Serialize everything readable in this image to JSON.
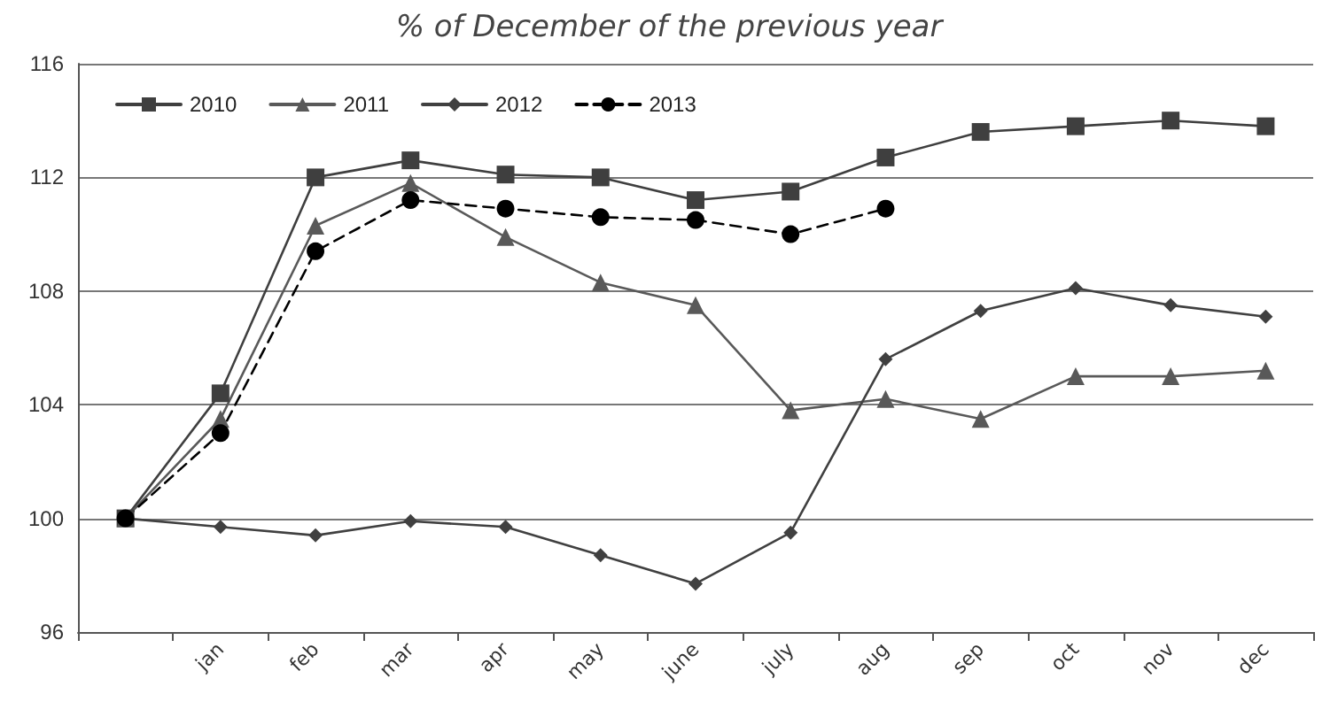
{
  "chart_data": {
    "type": "line",
    "title": "% of December of the previous year",
    "categories": [
      null,
      "jan",
      "feb",
      "mar",
      "apr",
      "may",
      "june",
      "july",
      "aug",
      "sep",
      "oct",
      "nov",
      "dec"
    ],
    "series": [
      {
        "name": "2010",
        "color": "#3f3f3f",
        "marker": "square",
        "line_style": "solid",
        "values": [
          100,
          104.4,
          112,
          112.6,
          112.1,
          112,
          111.2,
          111.5,
          112.7,
          113.6,
          113.8,
          114,
          113.8
        ]
      },
      {
        "name": "2011",
        "color": "#595959",
        "marker": "triangle",
        "line_style": "solid",
        "values": [
          100,
          103.5,
          110.3,
          111.8,
          109.9,
          108.3,
          107.5,
          103.8,
          104.2,
          103.5,
          105,
          105,
          105.2
        ]
      },
      {
        "name": "2012",
        "color": "#404040",
        "marker": "diamond",
        "line_style": "solid",
        "values": [
          100,
          99.7,
          99.4,
          99.9,
          99.7,
          98.7,
          97.7,
          99.5,
          105.6,
          107.3,
          108.1,
          107.5,
          107.1
        ]
      },
      {
        "name": "2013",
        "color": "#000000",
        "marker": "circle",
        "line_style": "dashed",
        "values": [
          100,
          103,
          109.4,
          111.2,
          110.9,
          110.6,
          110.5,
          110,
          110.9,
          null,
          null,
          null,
          null
        ]
      }
    ],
    "ylim": [
      96,
      116
    ],
    "yticks": [
      96,
      100,
      104,
      108,
      112,
      116
    ],
    "grid": "y",
    "legend": "top left"
  }
}
